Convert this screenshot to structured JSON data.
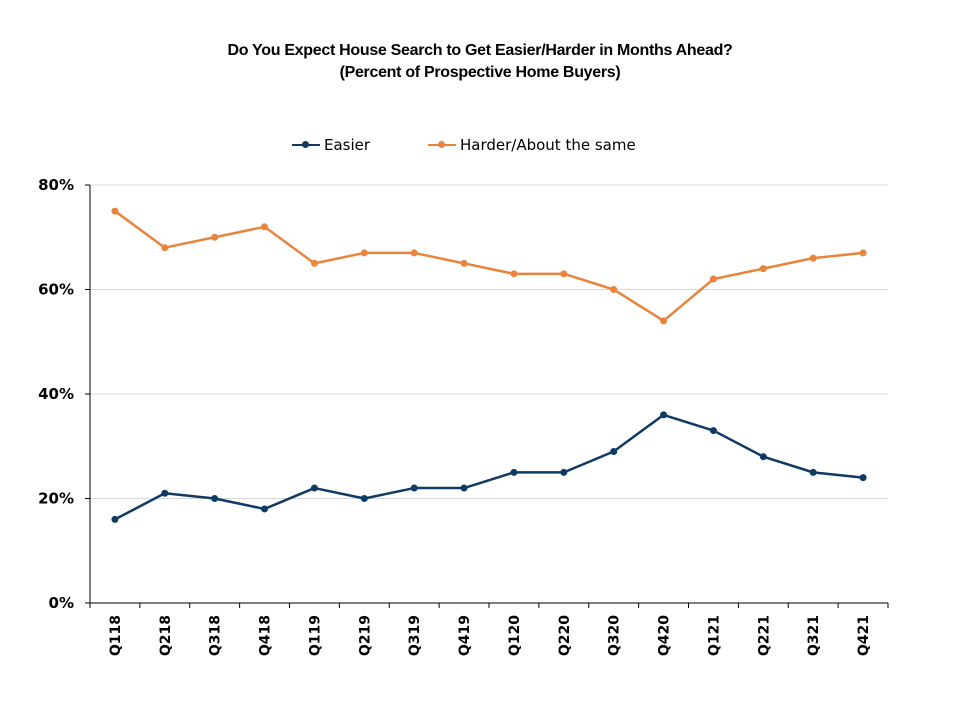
{
  "chart_data": {
    "type": "line",
    "title": "Do You Expect House Search to Get Easier/Harder in Months Ahead?",
    "subtitle": "(Percent of Prospective Home Buyers)",
    "categories": [
      "Q118",
      "Q218",
      "Q318",
      "Q418",
      "Q119",
      "Q219",
      "Q319",
      "Q419",
      "Q120",
      "Q220",
      "Q320",
      "Q420",
      "Q121",
      "Q221",
      "Q321",
      "Q421"
    ],
    "series": [
      {
        "name": "Easier",
        "color": "#0f3a63",
        "values": [
          16,
          21,
          20,
          18,
          22,
          20,
          22,
          22,
          25,
          25,
          29,
          36,
          33,
          28,
          25,
          24
        ]
      },
      {
        "name": "Harder/About the same",
        "color": "#e8843c",
        "values": [
          75,
          68,
          70,
          72,
          65,
          67,
          67,
          65,
          63,
          63,
          60,
          54,
          62,
          64,
          66,
          67
        ]
      }
    ],
    "ylim": [
      0,
      80
    ],
    "yticks": [
      "0%",
      "20%",
      "40%",
      "60%",
      "80%"
    ],
    "grid": true,
    "legend": "top-center"
  }
}
